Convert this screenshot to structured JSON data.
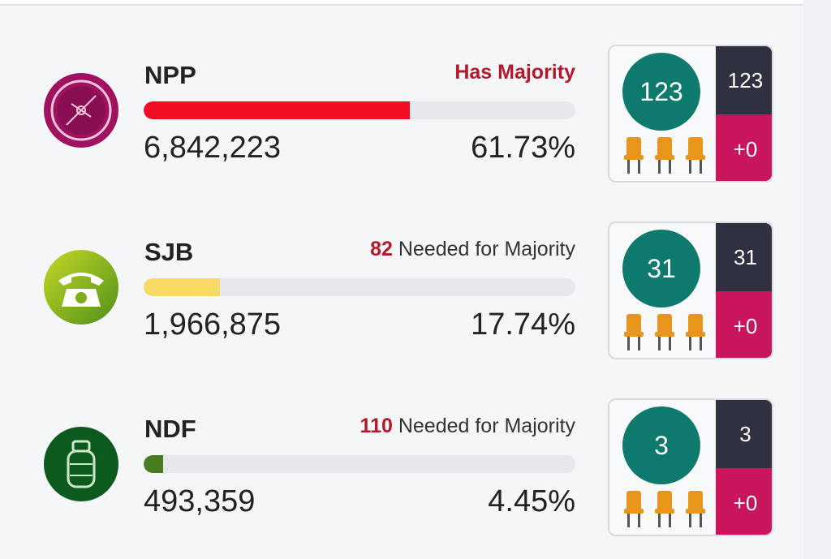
{
  "parties": [
    {
      "name": "NPP",
      "status_prefix": "",
      "status_text": "Has Majority",
      "votes": "6,842,223",
      "percent": "61.73%",
      "percent_value": 61.73,
      "seats": "123",
      "seats_won": "123",
      "seat_change": "+0",
      "bar_color": "#f20d22",
      "logo_color": "#a0115f",
      "icon": "compass-icon"
    },
    {
      "name": "SJB",
      "status_prefix": "82",
      "status_text": "Needed for Majority",
      "votes": "1,966,875",
      "percent": "17.74%",
      "percent_value": 17.74,
      "seats": "31",
      "seats_won": "31",
      "seat_change": "+0",
      "bar_color": "#f7d964",
      "logo_color": "#7cae1a",
      "icon": "telephone-icon"
    },
    {
      "name": "NDF",
      "status_prefix": "110",
      "status_text": "Needed for Majority",
      "votes": "493,359",
      "percent": "4.45%",
      "percent_value": 4.45,
      "seats": "3",
      "seats_won": "3",
      "seat_change": "+0",
      "bar_color": "#4a7d22",
      "logo_color": "#0d5a1e",
      "icon": "gas-cylinder-icon"
    }
  ]
}
